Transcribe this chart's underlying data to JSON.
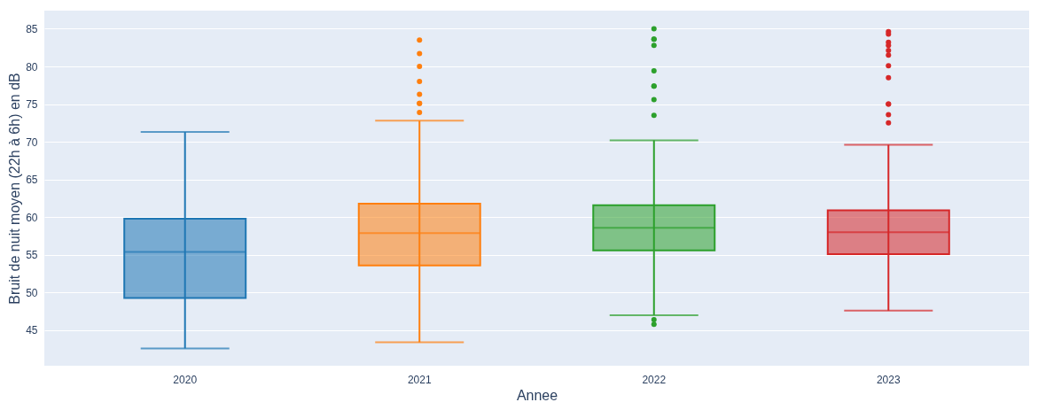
{
  "chart_data": {
    "type": "box",
    "xlabel": "Annee",
    "ylabel": "Bruit de nuit moyen (22h à 6h) en dB",
    "categories": [
      "2020",
      "2021",
      "2022",
      "2023"
    ],
    "colors": [
      "#1f77b4",
      "#ff7f0e",
      "#2ca02c",
      "#d62728"
    ],
    "boxes": [
      {
        "low": 42.6,
        "q1": 49.3,
        "median": 55.4,
        "q3": 59.8,
        "high": 71.3
      },
      {
        "low": 43.4,
        "q1": 53.6,
        "median": 57.9,
        "q3": 61.8,
        "high": 72.8,
        "outliers": [
          83.5,
          81.7,
          80.0,
          78.0,
          76.3,
          75.1,
          75.1,
          73.9
        ]
      },
      {
        "low": 47.0,
        "q1": 55.6,
        "median": 58.6,
        "q3": 61.6,
        "high": 70.2,
        "outliers": [
          85.0,
          83.6,
          83.6,
          82.8,
          79.4,
          77.4,
          77.4,
          75.6,
          73.5,
          46.4,
          45.8
        ]
      },
      {
        "low": 47.6,
        "q1": 55.1,
        "median": 58.0,
        "q3": 60.9,
        "high": 69.6,
        "outliers": [
          84.6,
          84.3,
          83.2,
          82.8,
          82.1,
          81.5,
          80.1,
          78.5,
          75.0,
          75.0,
          73.6,
          72.5
        ]
      }
    ],
    "ylim": [
      40.3,
      87.4
    ],
    "yticks": [
      45,
      50,
      55,
      60,
      65,
      70,
      75,
      80,
      85
    ],
    "grid": "y",
    "marker": "circle",
    "legend": false
  }
}
